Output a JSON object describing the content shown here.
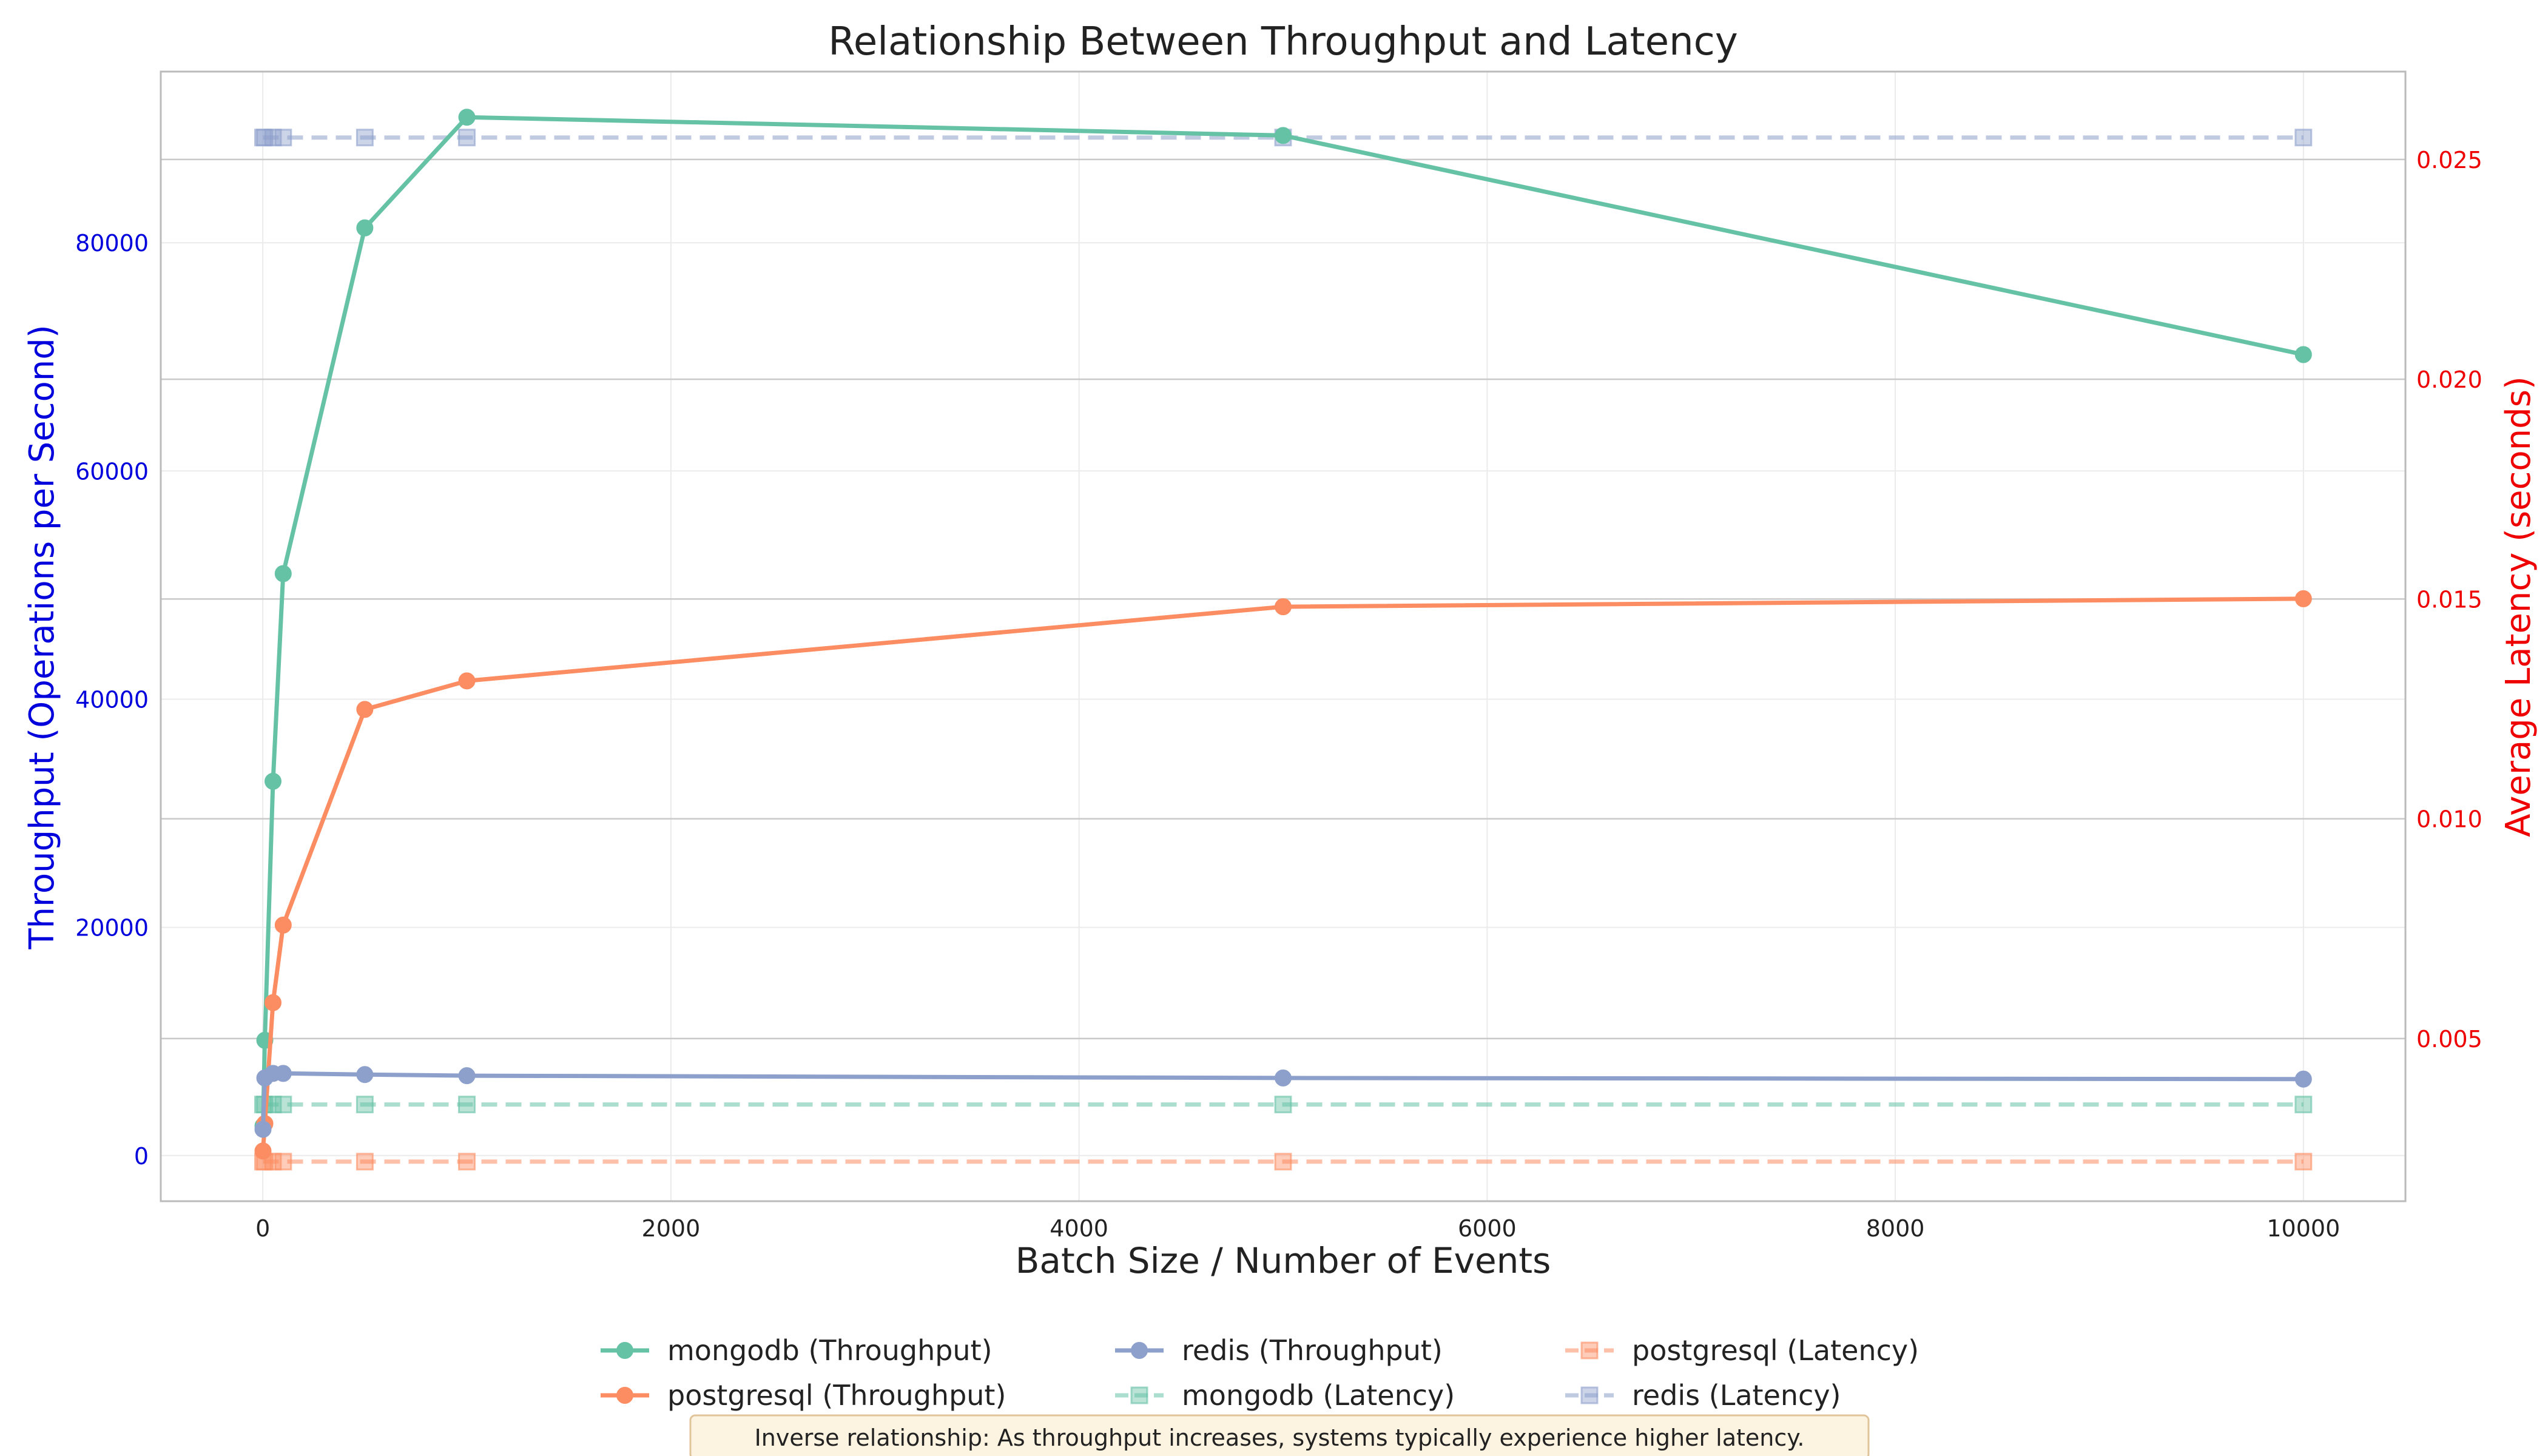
{
  "chart_data": {
    "type": "line",
    "title": "Relationship Between Throughput and Latency",
    "xlabel": "Batch Size / Number of Events",
    "ylabel_left": "Throughput (Operations per Second)",
    "ylabel_right": "Average Latency (seconds)",
    "xlim": [
      -500,
      10500
    ],
    "ylim_left": [
      -4000,
      95000
    ],
    "ylim_right": [
      0.0013,
      0.027
    ],
    "x_ticks": [
      0,
      2000,
      4000,
      6000,
      8000,
      10000
    ],
    "y_left_ticks": [
      0,
      20000,
      40000,
      60000,
      80000
    ],
    "y_right_ticks": [
      0.005,
      0.01,
      0.015,
      0.02,
      0.025
    ],
    "x_tick_labels": [
      "0",
      "2000",
      "4000",
      "6000",
      "8000",
      "10000"
    ],
    "y_left_tick_labels": [
      "0",
      "20000",
      "40000",
      "60000",
      "80000"
    ],
    "y_right_tick_labels": [
      "0.005",
      "0.010",
      "0.015",
      "0.020",
      "0.025"
    ],
    "colors": {
      "mongodb": "#66c2a5",
      "postgresql": "#fc8d62",
      "redis": "#8da0cb",
      "left_axis": "#0000dd",
      "right_axis": "#ee0000"
    },
    "series": [
      {
        "name": "mongodb (Throughput)",
        "db": "mongodb",
        "axis": "left",
        "kind": "throughput",
        "x": [
          1,
          10,
          50,
          100,
          500,
          1000,
          5000,
          10000
        ],
        "y": [
          2600,
          10100,
          32800,
          51000,
          81300,
          91000,
          89400,
          70200
        ]
      },
      {
        "name": "postgresql (Throughput)",
        "db": "postgresql",
        "axis": "left",
        "kind": "throughput",
        "x": [
          1,
          10,
          50,
          100,
          500,
          1000,
          5000,
          10000
        ],
        "y": [
          400,
          2800,
          13400,
          20200,
          39100,
          41600,
          48100,
          48800
        ]
      },
      {
        "name": "redis (Throughput)",
        "db": "redis",
        "axis": "left",
        "kind": "throughput",
        "x": [
          1,
          10,
          50,
          100,
          500,
          1000,
          5000,
          10000
        ],
        "y": [
          2300,
          6800,
          7200,
          7200,
          7100,
          7000,
          6800,
          6700
        ]
      },
      {
        "name": "mongodb (Latency)",
        "db": "mongodb",
        "axis": "right",
        "kind": "latency",
        "x": [
          1,
          10,
          50,
          100,
          500,
          1000,
          5000,
          10000
        ],
        "y": [
          0.0035,
          0.0035,
          0.0035,
          0.0035,
          0.0035,
          0.0035,
          0.0035,
          0.0035
        ]
      },
      {
        "name": "postgresql (Latency)",
        "db": "postgresql",
        "axis": "right",
        "kind": "latency",
        "x": [
          1,
          10,
          50,
          100,
          500,
          1000,
          5000,
          10000
        ],
        "y": [
          0.0022,
          0.0022,
          0.0022,
          0.0022,
          0.0022,
          0.0022,
          0.0022,
          0.0022
        ]
      },
      {
        "name": "redis (Latency)",
        "db": "redis",
        "axis": "right",
        "kind": "latency",
        "x": [
          1,
          10,
          50,
          100,
          500,
          1000,
          5000,
          10000
        ],
        "y": [
          0.0255,
          0.0255,
          0.0255,
          0.0255,
          0.0255,
          0.0255,
          0.0255,
          0.0255
        ]
      }
    ],
    "legend": {
      "placement": "bottom-center",
      "columns": 3,
      "entries": [
        "mongodb (Throughput)",
        "postgresql (Throughput)",
        "redis (Throughput)",
        "mongodb (Latency)",
        "postgresql (Latency)",
        "redis (Latency)"
      ]
    },
    "annotation": "Inverse relationship: As throughput increases, systems typically experience higher latency.",
    "grid": true
  }
}
